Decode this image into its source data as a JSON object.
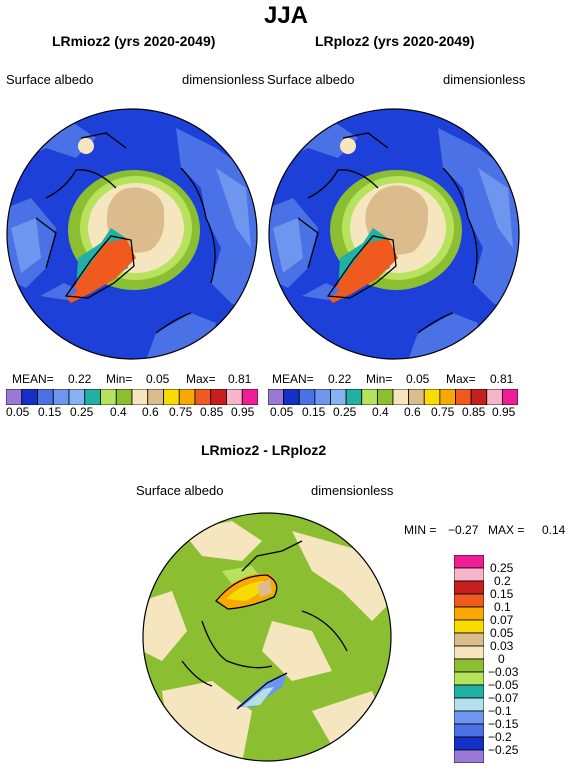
{
  "header": {
    "title": "JJA"
  },
  "colors": {
    "ocean": "#1c40d8",
    "land_blue": "#4a72e6",
    "land_blue2": "#6e96ee",
    "green": "#8cbe32",
    "lightgreen": "#b6e25e",
    "cream": "#f6e6c0",
    "tan": "#dcbc8c",
    "orange": "#f05a1e",
    "outline": "#000000",
    "diff_green": "#8cbe32",
    "diff_cream": "#f6e6c0"
  },
  "panels": {
    "left": {
      "title": "LRmioz2 (yrs 2020-2049)",
      "var": "Surface albedo",
      "units": "dimensionless",
      "mean_label": "MEAN=",
      "mean": "0.22",
      "min_label": "Min=",
      "min": "0.05",
      "max_label": "Max=",
      "max": "0.81"
    },
    "right": {
      "title": "LRploz2 (yrs 2020-2049)",
      "var": "Surface albedo",
      "units": "dimensionless",
      "mean_label": "MEAN=",
      "mean": "0.22",
      "min_label": "Min=",
      "min": "0.05",
      "max_label": "Max=",
      "max": "0.81"
    },
    "diff": {
      "title": "LRmioz2 - LRploz2",
      "var": "Surface albedo",
      "units": "dimensionless",
      "min_label": "MIN =",
      "min": "−0.27",
      "max_label": "MAX =",
      "max": "0.14"
    }
  },
  "chart_data": [
    {
      "type": "heatmap",
      "title": "LRmioz2 (yrs 2020-2049)",
      "variable": "Surface albedo",
      "units": "dimensionless",
      "mean": 0.22,
      "min": 0.05,
      "max": 0.81,
      "colorbar": {
        "orientation": "horizontal",
        "colors": [
          "#9b79d6",
          "#1430c8",
          "#4a72e6",
          "#6e96ee",
          "#86b4f2",
          "#20b0a4",
          "#b6e25e",
          "#8cbe32",
          "#f6e6c0",
          "#dcbc8c",
          "#f8dc00",
          "#f8a800",
          "#f05a1e",
          "#c81e1e",
          "#f8b4c8",
          "#f01e96"
        ],
        "tick_labels": [
          "0.05",
          "0.15",
          "0.25",
          "0.4",
          "0.6",
          "0.75",
          "0.85",
          "0.95"
        ]
      }
    },
    {
      "type": "heatmap",
      "title": "LRploz2 (yrs 2020-2049)",
      "variable": "Surface albedo",
      "units": "dimensionless",
      "mean": 0.22,
      "min": 0.05,
      "max": 0.81,
      "colorbar": {
        "orientation": "horizontal",
        "colors": [
          "#9b79d6",
          "#1430c8",
          "#4a72e6",
          "#6e96ee",
          "#86b4f2",
          "#20b0a4",
          "#b6e25e",
          "#8cbe32",
          "#f6e6c0",
          "#dcbc8c",
          "#f8dc00",
          "#f8a800",
          "#f05a1e",
          "#c81e1e",
          "#f8b4c8",
          "#f01e96"
        ],
        "tick_labels": [
          "0.05",
          "0.15",
          "0.25",
          "0.4",
          "0.6",
          "0.75",
          "0.85",
          "0.95"
        ]
      }
    },
    {
      "type": "heatmap",
      "title": "LRmioz2 - LRploz2",
      "variable": "Surface albedo",
      "units": "dimensionless",
      "min": -0.27,
      "max": 0.14,
      "colorbar": {
        "orientation": "vertical",
        "colors": [
          "#f01e96",
          "#f8b4c8",
          "#c81e1e",
          "#f05a1e",
          "#f8a800",
          "#f8dc00",
          "#dcbc8c",
          "#f6e6c0",
          "#8cbe32",
          "#b6e25e",
          "#20b0a4",
          "#b4e0ec",
          "#6e96ee",
          "#4a72e6",
          "#1430c8",
          "#9b79d6"
        ],
        "tick_labels": [
          "0.25",
          "0.2",
          "0.15",
          "0.1",
          "0.07",
          "0.05",
          "0.03",
          "0",
          "−0.03",
          "−0.05",
          "−0.07",
          "−0.1",
          "−0.15",
          "−0.2",
          "−0.25"
        ]
      }
    }
  ]
}
